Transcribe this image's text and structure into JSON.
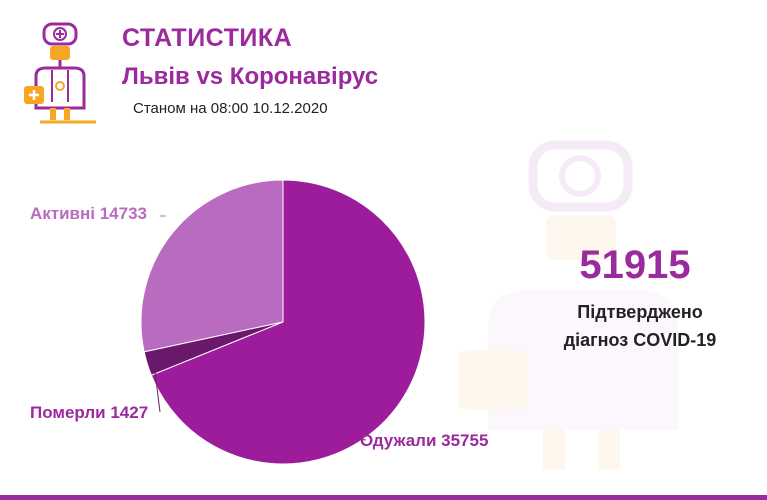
{
  "header": {
    "title": "СТАТИСТИКА",
    "subtitle": "Львів vs Коронавірус",
    "as_of": "Станом на 08:00 10.12.2020",
    "logo_icon": "doctor-icon"
  },
  "summary": {
    "confirmed_total": "51915",
    "confirmed_label_line1": "Підтверджено",
    "confirmed_label_line2": "діагноз COVID-19"
  },
  "colors": {
    "brand_purple": "#9b2a9e",
    "recovered": "#9c1c9c",
    "active": "#b96bc0",
    "deceased": "#6a186c",
    "icon_orange": "#f5a623"
  },
  "chart_data": {
    "type": "pie",
    "categories": [
      "Активні",
      "Померли",
      "Одужали"
    ],
    "values": [
      14733,
      1427,
      35755
    ],
    "labels": [
      "Активні 14733",
      "Померли 1427",
      "Одужали 35755"
    ],
    "colors": [
      "#b96bc0",
      "#6a186c",
      "#9c1c9c"
    ],
    "start_angle_deg": 0,
    "direction": "counterclockwise"
  }
}
